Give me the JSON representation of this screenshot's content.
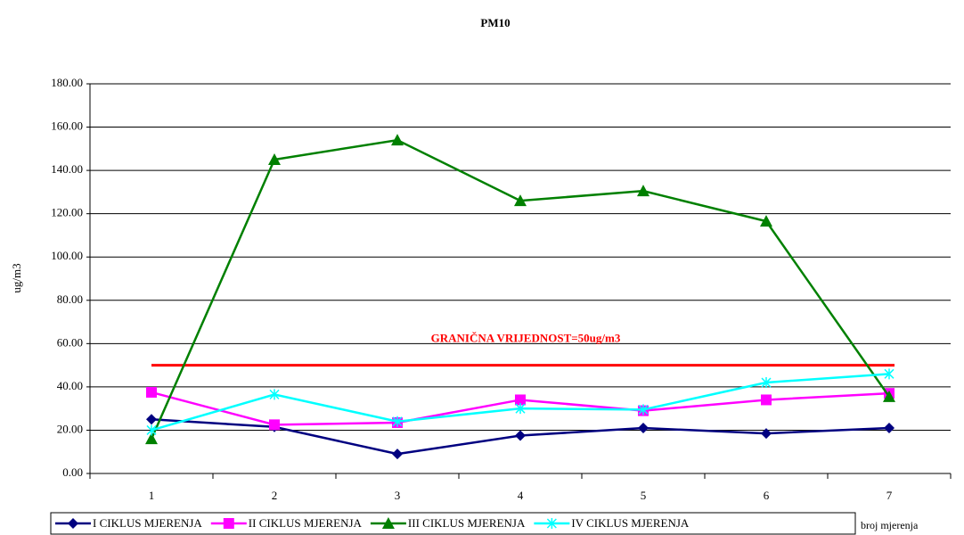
{
  "chart_data": {
    "type": "line",
    "title": "PM10",
    "y_label": "ug/m3",
    "x_label": "broj mjerenja",
    "categories": [
      "1",
      "2",
      "3",
      "4",
      "5",
      "6",
      "7"
    ],
    "series": [
      {
        "name": "I CIKLUS MJERENJA",
        "color": "#000080",
        "marker": "diamond",
        "values": [
          25,
          21.5,
          9,
          17.5,
          21,
          18.5,
          21
        ]
      },
      {
        "name": "II CIKLUS MJERENJA",
        "color": "#ff00ff",
        "marker": "square",
        "values": [
          37.5,
          22.5,
          23.5,
          34,
          29,
          34,
          37
        ]
      },
      {
        "name": "III CIKLUS MJERENJA",
        "color": "#008000",
        "marker": "triangle",
        "values": [
          16,
          145,
          154,
          126,
          130.5,
          116.5,
          35.5
        ]
      },
      {
        "name": "IV CIKLUS MJERENJA",
        "color": "#00ffff",
        "marker": "x",
        "values": [
          20,
          36.5,
          24,
          30,
          29.5,
          42,
          46
        ]
      }
    ],
    "limit": {
      "label": "GRANIČNA VRIJEDNOST=50ug/m3",
      "value": 50,
      "color": "#ff0000"
    },
    "ylim": [
      0,
      180
    ],
    "yticks": [
      {
        "value": 0,
        "label": "0.00"
      },
      {
        "value": 20,
        "label": "20.00"
      },
      {
        "value": 40,
        "label": "40.00"
      },
      {
        "value": 60,
        "label": "60.00"
      },
      {
        "value": 80,
        "label": "80.00"
      },
      {
        "value": 100,
        "label": "100.00"
      },
      {
        "value": 120,
        "label": "120.00"
      },
      {
        "value": 140,
        "label": "140.00"
      },
      {
        "value": 160,
        "label": "160.00"
      },
      {
        "value": 180,
        "label": "180.00"
      }
    ],
    "grid": true,
    "legend": "bottom"
  }
}
